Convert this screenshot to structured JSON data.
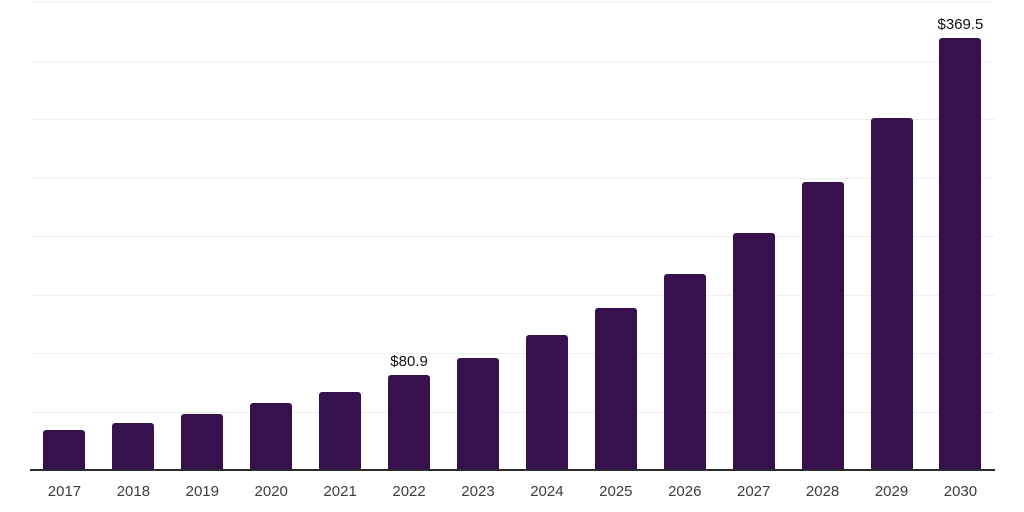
{
  "chart_data": {
    "type": "bar",
    "title": "",
    "subtitle": "",
    "xlabel": "",
    "ylabel": "",
    "categories": [
      "2017",
      "2018",
      "2019",
      "2020",
      "2021",
      "2022",
      "2023",
      "2024",
      "2025",
      "2026",
      "2027",
      "2028",
      "2029",
      "2030"
    ],
    "values": [
      34.5,
      40.4,
      47.7,
      57.0,
      67.0,
      80.9,
      95.9,
      115.6,
      138.3,
      167.7,
      202.3,
      246.3,
      301.1,
      369.5
    ],
    "value_prefix": "$",
    "data_labels": [
      {
        "category": "2022",
        "text": "$80.9"
      },
      {
        "category": "2030",
        "text": "$369.5"
      }
    ],
    "ylim": [
      0,
      400
    ],
    "grid_step": 50,
    "grid": "horizontal-only",
    "y_tick_labels_shown": false,
    "legend_position": "none",
    "colors": {
      "bar": "#36114e",
      "gridline": "#efefef",
      "axis_line": "#2b2b2b",
      "x_tick_label": "#3d3d3d",
      "data_label": "#111111",
      "background": "#ffffff"
    }
  }
}
